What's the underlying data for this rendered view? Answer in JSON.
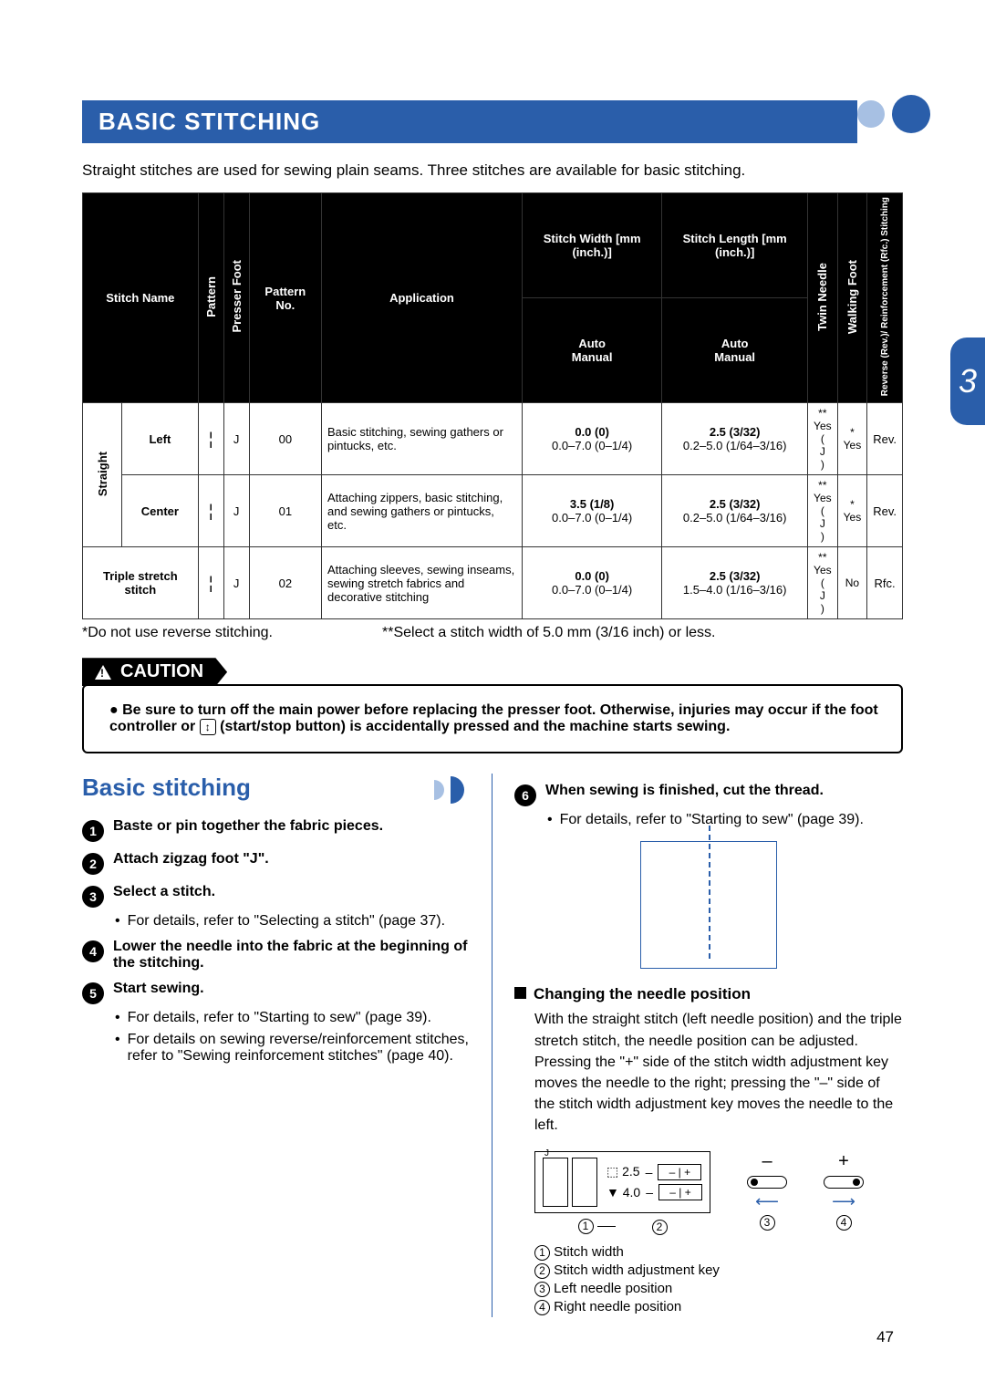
{
  "colors": {
    "brandBlue": "#2a5eaa",
    "lightBlue": "#a7c0e3",
    "text": "#000000"
  },
  "title": "BASIC STITCHING",
  "intro": "Straight stitches are used for sewing plain seams. Three stitches are available for basic stitching.",
  "pageTab": "3",
  "pageNumber": "47",
  "table": {
    "headers": {
      "stitchName": "Stitch Name",
      "pattern": "Pattern",
      "presserFoot": "Presser Foot",
      "patternNo": "Pattern No.",
      "application": "Application",
      "stitchWidth": "Stitch Width [mm (inch.)]",
      "stitchLength": "Stitch Length [mm (inch.)]",
      "auto": "Auto",
      "manual": "Manual",
      "twinNeedle": "Twin Needle",
      "walkingFoot": "Walking Foot",
      "revRfc": "Reverse (Rev.)/ Reinforcement (Rfc.) Stitching"
    },
    "groupLabel": "Straight",
    "rows": [
      {
        "name": "Left",
        "foot": "J",
        "patternNo": "00",
        "application": "Basic stitching, sewing gathers or pintucks, etc.",
        "widthAuto": "0.0 (0)",
        "widthManual": "0.0–7.0 (0–1/4)",
        "lengthAuto": "2.5 (3/32)",
        "lengthManual": "0.2–5.0 (1/64–3/16)",
        "twinNeedle": "** Yes ( J )",
        "walkingFoot": "* Yes",
        "rev": "Rev."
      },
      {
        "name": "Center",
        "foot": "J",
        "patternNo": "01",
        "application": "Attaching zippers, basic stitching, and sewing gathers or pintucks, etc.",
        "widthAuto": "3.5 (1/8)",
        "widthManual": "0.0–7.0 (0–1/4)",
        "lengthAuto": "2.5 (3/32)",
        "lengthManual": "0.2–5.0 (1/64–3/16)",
        "twinNeedle": "** Yes ( J )",
        "walkingFoot": "* Yes",
        "rev": "Rev."
      },
      {
        "name": "Triple stretch stitch",
        "foot": "J",
        "patternNo": "02",
        "application": "Attaching sleeves, sewing inseams, sewing stretch fabrics and decorative stitching",
        "widthAuto": "0.0 (0)",
        "widthManual": "0.0–7.0 (0–1/4)",
        "lengthAuto": "2.5 (3/32)",
        "lengthManual": "1.5–4.0 (1/16–3/16)",
        "twinNeedle": "** Yes ( J )",
        "walkingFoot": "No",
        "rev": "Rfc."
      }
    ]
  },
  "footnote1": "*Do not use reverse stitching.",
  "footnote2": "**Select a stitch width of 5.0 mm (3/16 inch) or less.",
  "cautionLabel": "CAUTION",
  "cautionBullet": "●",
  "cautionText1": "Be sure to turn off the main power before replacing the presser foot. Otherwise, injuries may occur if the foot controller or ",
  "cautionText2": " (start/stop button) is accidentally pressed and the machine starts sewing.",
  "subhead": "Basic stitching",
  "steps": [
    {
      "n": "1",
      "text": "Baste or pin together the fabric pieces."
    },
    {
      "n": "2",
      "text": "Attach zigzag foot \"J\"."
    },
    {
      "n": "3",
      "text": "Select a stitch."
    },
    {
      "n": "4",
      "text": "Lower the needle into the fabric at the beginning of the stitching."
    },
    {
      "n": "5",
      "text": "Start sewing."
    },
    {
      "n": "6",
      "text": "When sewing is finished, cut the thread."
    }
  ],
  "sub3": "For details, refer to \"Selecting a stitch\" (page 37).",
  "sub5a": "For details, refer to \"Starting to sew\" (page 39).",
  "sub5b": "For details on sewing reverse/reinforcement stitches, refer to \"Sewing reinforcement stitches\" (page 40).",
  "sub6": "For details, refer to \"Starting to sew\" (page 39).",
  "needleSection": {
    "head": "Changing the needle position",
    "para": "With the straight stitch (left needle position) and the triple stretch stitch, the needle position can be adjusted. Pressing the \"+\" side of the stitch width adjustment key moves the needle to the right; pressing the \"–\" side of the stitch width adjustment key moves the needle to the left.",
    "lcdLine1": "⬚ 2.5",
    "lcdLine2": "▼ 4.0",
    "minus": "–",
    "plus": "+",
    "legend": [
      "Stitch width",
      "Stitch width adjustment key",
      "Left needle position",
      "Right needle position"
    ]
  }
}
